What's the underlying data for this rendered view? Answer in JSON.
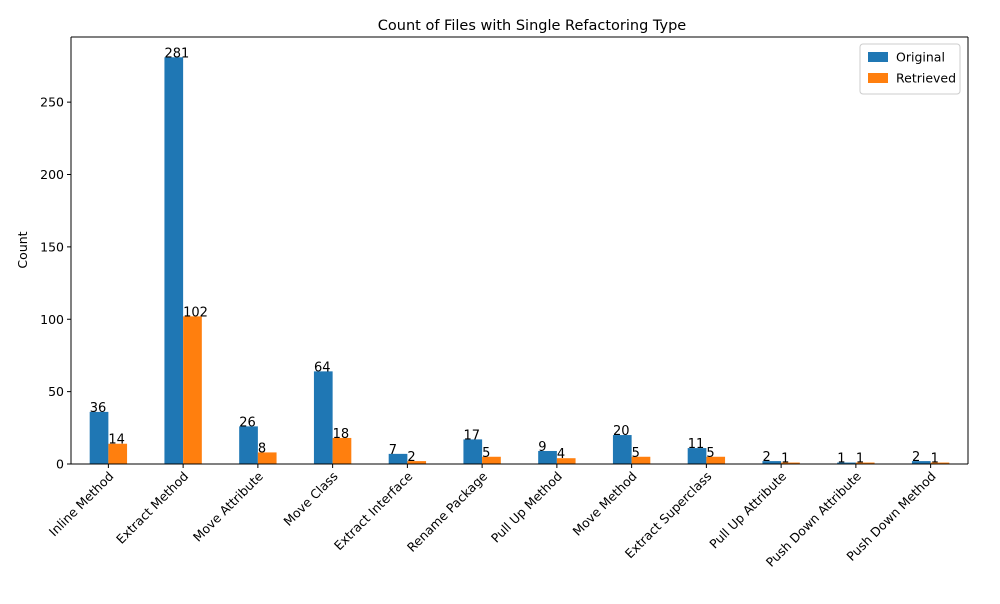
{
  "chart_data": {
    "type": "bar",
    "title": "Count of Files with Single Refactoring Type",
    "xlabel": "",
    "ylabel": "Count",
    "categories": [
      "Inline Method",
      "Extract Method",
      "Move Attribute",
      "Move Class",
      "Extract Interface",
      "Rename Package",
      "Pull Up Method",
      "Move Method",
      "Extract Superclass",
      "Pull Up Attribute",
      "Push Down Attribute",
      "Push Down Method"
    ],
    "series": [
      {
        "name": "Original",
        "color": "#1f77b4",
        "values": [
          36,
          281,
          26,
          64,
          7,
          17,
          9,
          20,
          11,
          2,
          1,
          2
        ]
      },
      {
        "name": "Retrieved",
        "color": "#ff7f0e",
        "values": [
          14,
          102,
          8,
          18,
          2,
          5,
          4,
          5,
          5,
          1,
          1,
          1
        ]
      }
    ],
    "ylim": [
      0,
      295
    ],
    "yticks": [
      0,
      50,
      100,
      150,
      200,
      250
    ],
    "grid": false,
    "legend_position": "top-right",
    "xtick_rotation": 45
  }
}
